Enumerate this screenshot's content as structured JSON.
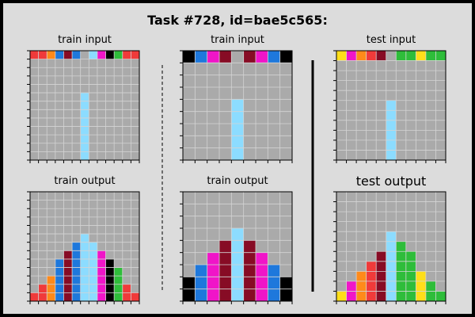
{
  "title": "Task #728, id=bae5c565:",
  "palette": {
    "0": "#000000",
    "1": "#1e78dc",
    "2": "#f03a3a",
    "3": "#2ebd3a",
    "4": "#ffde1a",
    "5": "#aaaaaa",
    "6": "#f015c8",
    "7": "#ff8a1a",
    "8": "#8cdcff",
    "9": "#870c25"
  },
  "panels": [
    {
      "title": "train input",
      "grid": [
        [
          2,
          2,
          7,
          1,
          9,
          1,
          5,
          8,
          6,
          0,
          3,
          2,
          2
        ],
        [
          5,
          5,
          5,
          5,
          5,
          5,
          5,
          5,
          5,
          5,
          5,
          5,
          5
        ],
        [
          5,
          5,
          5,
          5,
          5,
          5,
          5,
          5,
          5,
          5,
          5,
          5,
          5
        ],
        [
          5,
          5,
          5,
          5,
          5,
          5,
          5,
          5,
          5,
          5,
          5,
          5,
          5
        ],
        [
          5,
          5,
          5,
          5,
          5,
          5,
          5,
          5,
          5,
          5,
          5,
          5,
          5
        ],
        [
          5,
          5,
          5,
          5,
          5,
          5,
          8,
          5,
          5,
          5,
          5,
          5,
          5
        ],
        [
          5,
          5,
          5,
          5,
          5,
          5,
          8,
          5,
          5,
          5,
          5,
          5,
          5
        ],
        [
          5,
          5,
          5,
          5,
          5,
          5,
          8,
          5,
          5,
          5,
          5,
          5,
          5
        ],
        [
          5,
          5,
          5,
          5,
          5,
          5,
          8,
          5,
          5,
          5,
          5,
          5,
          5
        ],
        [
          5,
          5,
          5,
          5,
          5,
          5,
          8,
          5,
          5,
          5,
          5,
          5,
          5
        ],
        [
          5,
          5,
          5,
          5,
          5,
          5,
          8,
          5,
          5,
          5,
          5,
          5,
          5
        ],
        [
          5,
          5,
          5,
          5,
          5,
          5,
          8,
          5,
          5,
          5,
          5,
          5,
          5
        ],
        [
          5,
          5,
          5,
          5,
          5,
          5,
          8,
          5,
          5,
          5,
          5,
          5,
          5
        ]
      ]
    },
    {
      "title": "train input",
      "grid": [
        [
          0,
          1,
          6,
          9,
          5,
          9,
          6,
          1,
          0
        ],
        [
          5,
          5,
          5,
          5,
          5,
          5,
          5,
          5,
          5
        ],
        [
          5,
          5,
          5,
          5,
          5,
          5,
          5,
          5,
          5
        ],
        [
          5,
          5,
          5,
          5,
          5,
          5,
          5,
          5,
          5
        ],
        [
          5,
          5,
          5,
          5,
          8,
          5,
          5,
          5,
          5
        ],
        [
          5,
          5,
          5,
          5,
          8,
          5,
          5,
          5,
          5
        ],
        [
          5,
          5,
          5,
          5,
          8,
          5,
          5,
          5,
          5
        ],
        [
          5,
          5,
          5,
          5,
          8,
          5,
          5,
          5,
          5
        ],
        [
          5,
          5,
          5,
          5,
          8,
          5,
          5,
          5,
          5
        ]
      ]
    },
    {
      "title": "test input",
      "grid": [
        [
          4,
          6,
          7,
          2,
          9,
          5,
          3,
          3,
          4,
          3,
          3
        ],
        [
          5,
          5,
          5,
          5,
          5,
          5,
          5,
          5,
          5,
          5,
          5
        ],
        [
          5,
          5,
          5,
          5,
          5,
          5,
          5,
          5,
          5,
          5,
          5
        ],
        [
          5,
          5,
          5,
          5,
          5,
          5,
          5,
          5,
          5,
          5,
          5
        ],
        [
          5,
          5,
          5,
          5,
          5,
          5,
          5,
          5,
          5,
          5,
          5
        ],
        [
          5,
          5,
          5,
          5,
          5,
          8,
          5,
          5,
          5,
          5,
          5
        ],
        [
          5,
          5,
          5,
          5,
          5,
          8,
          5,
          5,
          5,
          5,
          5
        ],
        [
          5,
          5,
          5,
          5,
          5,
          8,
          5,
          5,
          5,
          5,
          5
        ],
        [
          5,
          5,
          5,
          5,
          5,
          8,
          5,
          5,
          5,
          5,
          5
        ],
        [
          5,
          5,
          5,
          5,
          5,
          8,
          5,
          5,
          5,
          5,
          5
        ],
        [
          5,
          5,
          5,
          5,
          5,
          8,
          5,
          5,
          5,
          5,
          5
        ]
      ]
    },
    {
      "title": "train output",
      "grid": [
        [
          5,
          5,
          5,
          5,
          5,
          5,
          5,
          5,
          5,
          5,
          5,
          5,
          5
        ],
        [
          5,
          5,
          5,
          5,
          5,
          5,
          5,
          5,
          5,
          5,
          5,
          5,
          5
        ],
        [
          5,
          5,
          5,
          5,
          5,
          5,
          5,
          5,
          5,
          5,
          5,
          5,
          5
        ],
        [
          5,
          5,
          5,
          5,
          5,
          5,
          5,
          5,
          5,
          5,
          5,
          5,
          5
        ],
        [
          5,
          5,
          5,
          5,
          5,
          5,
          5,
          5,
          5,
          5,
          5,
          5,
          5
        ],
        [
          5,
          5,
          5,
          5,
          5,
          5,
          8,
          5,
          5,
          5,
          5,
          5,
          5
        ],
        [
          5,
          5,
          5,
          5,
          5,
          1,
          8,
          8,
          5,
          5,
          5,
          5,
          5
        ],
        [
          5,
          5,
          5,
          5,
          9,
          1,
          8,
          8,
          6,
          5,
          5,
          5,
          5
        ],
        [
          5,
          5,
          5,
          1,
          9,
          1,
          8,
          8,
          6,
          0,
          5,
          5,
          5
        ],
        [
          5,
          5,
          5,
          1,
          9,
          1,
          8,
          8,
          6,
          0,
          3,
          5,
          5
        ],
        [
          5,
          5,
          7,
          1,
          9,
          1,
          8,
          8,
          6,
          0,
          3,
          5,
          5
        ],
        [
          5,
          2,
          7,
          1,
          9,
          1,
          8,
          8,
          6,
          0,
          3,
          2,
          5
        ],
        [
          2,
          2,
          7,
          1,
          9,
          1,
          8,
          8,
          6,
          0,
          3,
          2,
          2
        ]
      ]
    },
    {
      "title": "train output",
      "grid": [
        [
          5,
          5,
          5,
          5,
          5,
          5,
          5,
          5,
          5
        ],
        [
          5,
          5,
          5,
          5,
          5,
          5,
          5,
          5,
          5
        ],
        [
          5,
          5,
          5,
          5,
          5,
          5,
          5,
          5,
          5
        ],
        [
          5,
          5,
          5,
          5,
          8,
          5,
          5,
          5,
          5
        ],
        [
          5,
          5,
          5,
          9,
          8,
          9,
          5,
          5,
          5
        ],
        [
          5,
          5,
          6,
          9,
          8,
          9,
          6,
          5,
          5
        ],
        [
          5,
          1,
          6,
          9,
          8,
          9,
          6,
          1,
          5
        ],
        [
          0,
          1,
          6,
          9,
          8,
          9,
          6,
          1,
          0
        ],
        [
          0,
          1,
          6,
          9,
          8,
          9,
          6,
          1,
          0
        ]
      ]
    },
    {
      "title": "test output",
      "big": true,
      "grid": [
        [
          5,
          5,
          5,
          5,
          5,
          5,
          5,
          5,
          5,
          5,
          5
        ],
        [
          5,
          5,
          5,
          5,
          5,
          5,
          5,
          5,
          5,
          5,
          5
        ],
        [
          5,
          5,
          5,
          5,
          5,
          5,
          5,
          5,
          5,
          5,
          5
        ],
        [
          5,
          5,
          5,
          5,
          5,
          5,
          5,
          5,
          5,
          5,
          5
        ],
        [
          5,
          5,
          5,
          5,
          5,
          8,
          5,
          5,
          5,
          5,
          5
        ],
        [
          5,
          5,
          5,
          5,
          5,
          8,
          3,
          5,
          5,
          5,
          5
        ],
        [
          5,
          5,
          5,
          5,
          9,
          8,
          3,
          3,
          5,
          5,
          5
        ],
        [
          5,
          5,
          5,
          2,
          9,
          8,
          3,
          3,
          5,
          5,
          5
        ],
        [
          5,
          5,
          7,
          2,
          9,
          8,
          3,
          3,
          4,
          5,
          5
        ],
        [
          5,
          6,
          7,
          2,
          9,
          8,
          3,
          3,
          4,
          3,
          5
        ],
        [
          4,
          6,
          7,
          2,
          9,
          8,
          3,
          3,
          4,
          3,
          3
        ]
      ]
    }
  ]
}
